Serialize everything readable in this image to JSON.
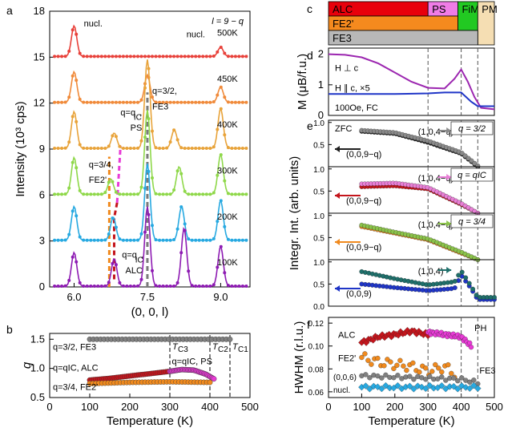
{
  "chart_data": [
    {
      "panel": "a",
      "type": "line",
      "xlabel": "(0, 0, l)",
      "ylabel": "Intensity (10³ cps)",
      "xlim": [
        5.5,
        9.6
      ],
      "ylim": [
        0,
        18
      ],
      "x_ticks": [
        "6.0",
        "7.5",
        "9.0"
      ],
      "y_ticks": [
        "0",
        "3",
        "6",
        "9",
        "12",
        "15",
        "18"
      ],
      "corner_label": "l = 9 − q",
      "series": [
        {
          "name": "500K",
          "color": "#e8413a",
          "offset": 15,
          "peaks": [
            [
              6.0,
              2.0
            ],
            [
              9.0,
              0.6
            ]
          ]
        },
        {
          "name": "450K",
          "color": "#f08a3a",
          "offset": 12,
          "peaks": [
            [
              6.0,
              2.0
            ],
            [
              7.5,
              1.8
            ],
            [
              9.0,
              1.0
            ]
          ]
        },
        {
          "name": "400K",
          "color": "#e8a33a",
          "offset": 9,
          "peaks": [
            [
              6.0,
              2.4
            ],
            [
              6.82,
              1.0
            ],
            [
              7.5,
              5.8
            ],
            [
              8.05,
              1.2
            ],
            [
              9.0,
              2.6
            ]
          ]
        },
        {
          "name": "300K",
          "color": "#8fd84a",
          "offset": 6,
          "peaks": [
            [
              6.0,
              2.4
            ],
            [
              6.75,
              1.0
            ],
            [
              7.5,
              5.5
            ],
            [
              8.15,
              1.8
            ],
            [
              9.0,
              2.6
            ]
          ]
        },
        {
          "name": "200K",
          "color": "#27a9e1",
          "offset": 3,
          "peaks": [
            [
              6.0,
              2.2
            ],
            [
              6.8,
              1.5
            ],
            [
              7.5,
              5.0
            ],
            [
              8.2,
              2.2
            ],
            [
              9.0,
              2.6
            ]
          ]
        },
        {
          "name": "100K",
          "color": "#8e1bb3",
          "offset": 0,
          "peaks": [
            [
              6.0,
              2.2
            ],
            [
              6.82,
              1.8
            ],
            [
              7.5,
              5.2
            ],
            [
              8.25,
              3.8
            ],
            [
              9.0,
              2.6
            ]
          ]
        }
      ],
      "annotations": [
        "nucl.",
        "nucl.",
        "q=3/2,",
        "FE3",
        "q=q",
        "IC",
        ",",
        "PS",
        "q=3/4,",
        "FE2'",
        "q=q",
        "IC",
        ",",
        "ALC"
      ]
    },
    {
      "panel": "b",
      "type": "scatter",
      "xlabel": "Temperature (K)",
      "ylabel": "q",
      "xlim": [
        0,
        500
      ],
      "ylim": [
        0.5,
        1.6
      ],
      "x_ticks": [
        "0",
        "100",
        "200",
        "300",
        "400",
        "500"
      ],
      "y_ticks": [
        "0.5",
        "1.0",
        "1.5"
      ],
      "series": [
        {
          "name": "q=3/2, FE3",
          "color": "#808080",
          "x": [
            100,
            450
          ],
          "y": [
            1.5,
            1.5
          ]
        },
        {
          "name": "q=qIC, ALC",
          "color": "#c4151c",
          "x": [
            100,
            150,
            200,
            250,
            300
          ],
          "y": [
            0.8,
            0.83,
            0.87,
            0.91,
            0.95
          ]
        },
        {
          "name": "q=qIC, PS",
          "color": "#e83ad6",
          "x": [
            300,
            330,
            360,
            390,
            410
          ],
          "y": [
            0.95,
            0.98,
            0.97,
            0.9,
            0.82
          ]
        },
        {
          "name": "q=3/4, FE2'",
          "color": "#f08a1e",
          "x": [
            100,
            200,
            300,
            400
          ],
          "y": [
            0.74,
            0.76,
            0.77,
            0.76
          ]
        }
      ],
      "vlines": [
        {
          "x": 300,
          "label": "T",
          "sub": "C3"
        },
        {
          "x": 400,
          "label": "T",
          "sub": "C2"
        },
        {
          "x": 450,
          "label": "T",
          "sub": "C1"
        }
      ]
    },
    {
      "panel": "d",
      "type": "line",
      "ylabel": "M (μB/f.u.)",
      "xlim": [
        0,
        500
      ],
      "ylim": [
        0,
        2.2
      ],
      "y_ticks": [
        "0",
        "1",
        "2"
      ],
      "note": "100Oe, FC",
      "series": [
        {
          "name": "H ⊥ c",
          "color": "#9c27b0",
          "x": [
            0,
            50,
            100,
            150,
            200,
            250,
            300,
            350,
            380,
            400,
            420,
            440,
            460,
            500
          ],
          "y": [
            2.0,
            1.98,
            1.9,
            1.7,
            1.4,
            1.1,
            0.9,
            0.88,
            1.2,
            1.5,
            1.1,
            0.6,
            0.25,
            0.2
          ]
        },
        {
          "name": "H ∥ c, ×5",
          "color": "#1f35c7",
          "x": [
            0,
            100,
            200,
            300,
            350,
            400,
            430,
            450,
            500
          ],
          "y": [
            0.7,
            0.7,
            0.7,
            0.72,
            0.75,
            0.75,
            0.45,
            0.3,
            0.3
          ]
        }
      ]
    },
    {
      "panel": "e",
      "type": "scatter",
      "ylabel": "Integr. Int. (arb. units)",
      "xlim": [
        0,
        500
      ],
      "sub_panels": [
        {
          "label": "q = 3/2",
          "tag": "ZFC",
          "series": [
            {
              "name": "(0,0,9−q)",
              "color": "#202020",
              "x": [
                100,
                200,
                300,
                400,
                450
              ],
              "y": [
                0.8,
                0.75,
                0.55,
                0.3,
                0.0
              ]
            },
            {
              "name": "(1,0,4−q)",
              "color": "#8a8a8a",
              "x": [
                100,
                200,
                300,
                400,
                450
              ],
              "y": [
                0.82,
                0.77,
                0.58,
                0.32,
                0.02
              ]
            }
          ]
        },
        {
          "label": "q = qIC",
          "series": [
            {
              "name": "(0,0,9−q)",
              "color": "#c4151c",
              "x": [
                100,
                200,
                300,
                400,
                450
              ],
              "y": [
                0.6,
                0.62,
                0.55,
                0.2,
                0.0
              ]
            },
            {
              "name": "(1,0,4−q)",
              "color": "#e87fd6",
              "x": [
                100,
                200,
                300,
                400,
                450
              ],
              "y": [
                0.66,
                0.68,
                0.58,
                0.22,
                0.0
              ]
            }
          ]
        },
        {
          "label": "q = 3/4",
          "series": [
            {
              "name": "(0,0,9−q)",
              "color": "#f08a1e",
              "x": [
                100,
                200,
                300,
                400,
                450
              ],
              "y": [
                0.75,
                0.6,
                0.45,
                0.15,
                0.0
              ]
            },
            {
              "name": "(1,0,4−q)",
              "color": "#8bc34a",
              "x": [
                100,
                200,
                300,
                400,
                450
              ],
              "y": [
                0.78,
                0.62,
                0.47,
                0.17,
                0.0
              ]
            }
          ]
        },
        {
          "label": "",
          "series": [
            {
              "name": "(0,0,9)",
              "color": "#1f35c7",
              "x": [
                100,
                200,
                300,
                380,
                400,
                430,
                450,
                500
              ],
              "y": [
                0.5,
                0.42,
                0.35,
                0.4,
                0.7,
                0.4,
                0.15,
                0.15
              ]
            },
            {
              "name": "(1,0,4)",
              "color": "#1e6f6a",
              "x": [
                100,
                200,
                300,
                380,
                400,
                430,
                450,
                500
              ],
              "y": [
                0.78,
                0.62,
                0.48,
                0.55,
                0.8,
                0.45,
                0.2,
                0.2
              ]
            }
          ]
        }
      ]
    },
    {
      "panel": "f",
      "type": "scatter",
      "xlabel": "Temperature (K)",
      "ylabel": "HWHM (r.l.u.)",
      "xlim": [
        0,
        500
      ],
      "ylim": [
        0.055,
        0.125
      ],
      "x_ticks": [
        "0",
        "100",
        "200",
        "300",
        "400",
        "500"
      ],
      "y_ticks": [
        "0.06",
        "0.08",
        "0.10",
        "0.12"
      ],
      "series": [
        {
          "name": "ALC",
          "color": "#c4151c",
          "x": [
            100,
            150,
            200,
            250,
            300
          ],
          "y": [
            0.103,
            0.108,
            0.11,
            0.113,
            0.11
          ]
        },
        {
          "name": "PH",
          "color": "#e83ad6",
          "x": [
            300,
            350,
            400,
            430
          ],
          "y": [
            0.112,
            0.11,
            0.108,
            0.1
          ]
        },
        {
          "name": "FE2'",
          "color": "#f08a1e",
          "x": [
            100,
            150,
            200,
            250,
            300,
            350,
            380
          ],
          "y": [
            0.09,
            0.086,
            0.084,
            0.082,
            0.078,
            0.082,
            0.076
          ]
        },
        {
          "name": "FE3",
          "color": "#808080",
          "x": [
            100,
            200,
            300,
            400,
            450
          ],
          "y": [
            0.074,
            0.073,
            0.072,
            0.071,
            0.068
          ]
        },
        {
          "name": "(0,0,6) nucl.",
          "color": "#27a9e1",
          "x": [
            100,
            200,
            300,
            400,
            450
          ],
          "y": [
            0.064,
            0.064,
            0.064,
            0.064,
            0.064
          ]
        }
      ]
    }
  ],
  "phase_diagram": {
    "panel": "c",
    "rows": [
      [
        {
          "label": "ALC",
          "color": "#e8000b"
        },
        {
          "label": "PS",
          "color": "#f07ce6"
        },
        {
          "label": "FiM",
          "color": "#22c922"
        },
        {
          "label": "PM",
          "color": "#f5deb3"
        }
      ],
      [
        {
          "label": "FE2'",
          "color": "#f58a1e"
        }
      ],
      [
        {
          "label": "FE3",
          "color": "#b8b8b8"
        }
      ]
    ]
  },
  "panel_labels": [
    "a",
    "b",
    "c",
    "d",
    "e",
    "f"
  ]
}
